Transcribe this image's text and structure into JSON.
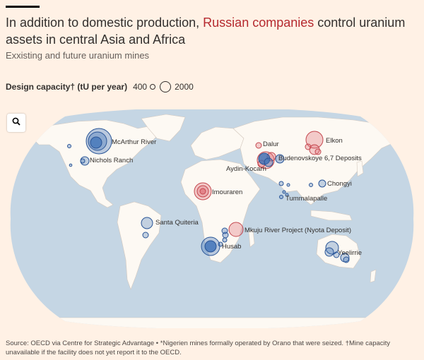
{
  "header": {
    "title_part1": "In addition to domestic production, ",
    "title_highlight": "Russian companies",
    "title_part2": " control uranium assets in central Asia and Africa",
    "subtitle": "Exxisting and future uranium mines"
  },
  "legend": {
    "label": "Design capacity† (tU per year)",
    "small_value": "400",
    "large_value": "2000"
  },
  "map": {
    "zoom_icon": "search-icon",
    "colors": {
      "ocean": "#c5d6e4",
      "land": "#fdf9f3",
      "other": "#3b6fb6",
      "russian": "#e0747a",
      "label": "#33302e"
    },
    "labels": [
      {
        "id": "mcarthur",
        "text": "McArthur River"
      },
      {
        "id": "nichols",
        "text": "Nichols Ranch"
      },
      {
        "id": "santa",
        "text": "Santa Quiteria"
      },
      {
        "id": "imouraren",
        "text": "Imouraren"
      },
      {
        "id": "husab",
        "text": "Husab"
      },
      {
        "id": "mkuju",
        "text": "Mkuju River Project (Nyota Deposit)"
      },
      {
        "id": "dalur",
        "text": "Dalur"
      },
      {
        "id": "elkon",
        "text": "Elkon"
      },
      {
        "id": "budenovskoye",
        "text": "Budenovskoye 6,7 Deposits"
      },
      {
        "id": "aydin",
        "text": "Aydin-Kocarn"
      },
      {
        "id": "chongyi",
        "text": "Chongyi"
      },
      {
        "id": "tummalapalle",
        "text": "Tummalapalle"
      },
      {
        "id": "yeelirrie",
        "text": "Yeelirrie"
      }
    ]
  },
  "footer": {
    "source": "Source: OECD via Centre for Strategic Advantage • *Nigerien mines formally operated by Orano that were seized. †Mine capacity unavailable if the facility does not yet report it to the OECD."
  }
}
